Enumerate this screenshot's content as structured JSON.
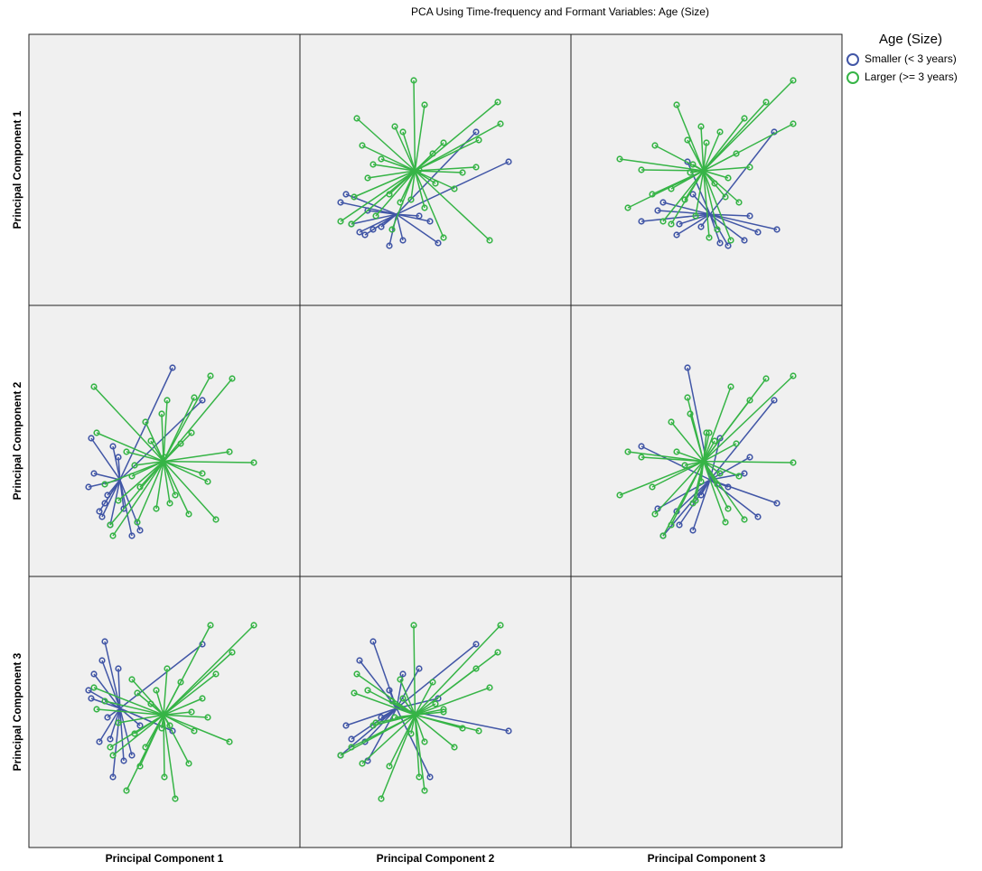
{
  "chart_data": {
    "type": "scatter-matrix",
    "title": "PCA Using Time-frequency and Formant Variables: Age (Size)",
    "legend_title": "Age (Size)",
    "variables": [
      "Principal Component 1",
      "Principal Component 2",
      "Principal Component 3"
    ],
    "xlim": [
      0,
      10
    ],
    "ylim": [
      0,
      10
    ],
    "series": [
      {
        "name": "Smaller (< 3 years)",
        "color": "#4156a6",
        "values": [
          [
            5.3,
            7.7,
            4.3
          ],
          [
            2.8,
            2.7,
            7.6
          ],
          [
            2.4,
            3.8,
            6.4
          ],
          [
            3.0,
            1.9,
            4.0
          ],
          [
            2.3,
            5.1,
            5.5
          ],
          [
            3.8,
            1.5,
            3.4
          ],
          [
            2.7,
            2.2,
            6.9
          ],
          [
            3.3,
            4.4,
            6.6
          ],
          [
            2.9,
            3.0,
            4.8
          ],
          [
            3.5,
            2.5,
            3.2
          ],
          [
            4.1,
            1.7,
            4.5
          ],
          [
            2.2,
            3.3,
            5.8
          ],
          [
            3.1,
            4.8,
            2.6
          ],
          [
            6.4,
            6.5,
            7.5
          ],
          [
            2.6,
            2.4,
            3.9
          ]
        ]
      },
      {
        "name": "Larger (>= 3 years)",
        "color": "#36b446",
        "values": [
          [
            8.3,
            4.2,
            8.2
          ],
          [
            6.7,
            7.4,
            8.2
          ],
          [
            2.4,
            7.0,
            5.9
          ],
          [
            7.5,
            7.3,
            7.2
          ],
          [
            5.1,
            6.5,
            6.6
          ],
          [
            3.1,
            1.5,
            3.4
          ],
          [
            2.5,
            5.3,
            5.1
          ],
          [
            6.9,
            2.1,
            6.4
          ],
          [
            4.0,
            2.0,
            5.7
          ],
          [
            3.0,
            1.9,
            3.7
          ],
          [
            5.4,
            3.0,
            1.8
          ],
          [
            7.4,
            4.6,
            3.9
          ],
          [
            6.1,
            6.6,
            4.3
          ],
          [
            4.3,
            5.7,
            3.7
          ],
          [
            5.9,
            2.3,
            3.1
          ],
          [
            3.6,
            4.6,
            2.1
          ],
          [
            6.4,
            3.8,
            5.5
          ],
          [
            4.9,
            6.0,
            4.4
          ],
          [
            3.3,
            2.8,
            4.6
          ],
          [
            5.6,
            4.9,
            6.1
          ],
          [
            4.1,
            3.3,
            3.0
          ],
          [
            6.0,
            5.3,
            5.0
          ],
          [
            3.8,
            3.7,
            6.2
          ],
          [
            5.2,
            2.7,
            4.5
          ],
          [
            4.5,
            5.0,
            5.3
          ],
          [
            3.9,
            4.1,
            4.2
          ],
          [
            5.0,
            4.4,
            2.6
          ],
          [
            6.6,
            3.5,
            4.8
          ],
          [
            2.8,
            3.4,
            5.4
          ],
          [
            4.7,
            2.5,
            5.8
          ]
        ]
      }
    ]
  }
}
